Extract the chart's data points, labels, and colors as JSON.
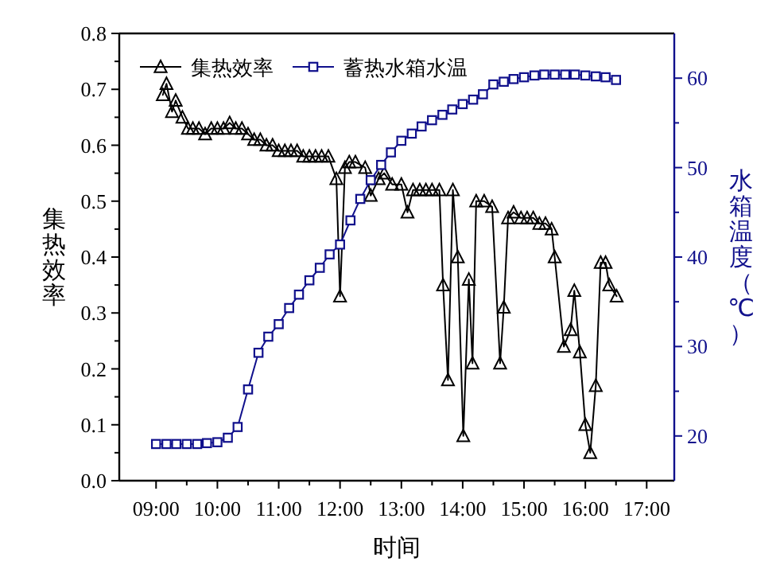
{
  "chart_data": {
    "type": "line",
    "xlabel": "时间",
    "ylabel": "集热效率",
    "y2label": "水箱温度（℃）",
    "xlim": [
      8.4,
      17.45
    ],
    "xticks": [
      {
        "value": 9,
        "label": "09:00"
      },
      {
        "value": 10,
        "label": "10:00"
      },
      {
        "value": 11,
        "label": "11:00"
      },
      {
        "value": 12,
        "label": "12:00"
      },
      {
        "value": 13,
        "label": "13:00"
      },
      {
        "value": 14,
        "label": "14:00"
      },
      {
        "value": 15,
        "label": "15:00"
      },
      {
        "value": 16,
        "label": "16:00"
      },
      {
        "value": 17,
        "label": "17:00"
      }
    ],
    "ylim": [
      0,
      0.8
    ],
    "yticks": [
      {
        "value": 0,
        "label": "0.0"
      },
      0.1,
      0.2,
      0.3,
      0.4,
      0.5,
      0.6,
      0.7,
      0.8
    ],
    "y2lim": [
      15,
      65
    ],
    "y2ticks": [
      20,
      30,
      40,
      50,
      60
    ],
    "legend": "top",
    "grid": false,
    "series": [
      {
        "name": "集热效率",
        "color": "#000000",
        "marker": "triangle",
        "x": [
          9.11,
          9.17,
          9.26,
          9.32,
          9.43,
          9.52,
          9.6,
          9.7,
          9.8,
          9.9,
          10.0,
          10.1,
          10.2,
          10.3,
          10.4,
          10.5,
          10.6,
          10.7,
          10.8,
          10.9,
          11.0,
          11.1,
          11.2,
          11.3,
          11.4,
          11.5,
          11.6,
          11.7,
          11.81,
          11.94,
          12.0,
          12.08,
          12.15,
          12.25,
          12.41,
          12.5,
          12.63,
          12.72,
          12.85,
          13.0,
          13.1,
          13.19,
          13.3,
          13.4,
          13.5,
          13.62,
          13.68,
          13.76,
          13.84,
          13.92,
          14.01,
          14.1,
          14.16,
          14.22,
          14.35,
          14.48,
          14.61,
          14.67,
          14.74,
          14.83,
          14.95,
          15.05,
          15.15,
          15.25,
          15.35,
          15.45,
          15.5,
          15.65,
          15.76,
          15.82,
          15.91,
          16.0,
          16.08,
          16.17,
          16.25,
          16.33,
          16.39,
          16.51
        ],
        "values": [
          0.69,
          0.71,
          0.66,
          0.68,
          0.65,
          0.63,
          0.63,
          0.63,
          0.62,
          0.63,
          0.63,
          0.63,
          0.64,
          0.63,
          0.63,
          0.62,
          0.61,
          0.61,
          0.6,
          0.6,
          0.59,
          0.59,
          0.59,
          0.59,
          0.58,
          0.58,
          0.58,
          0.58,
          0.58,
          0.54,
          0.33,
          0.56,
          0.57,
          0.57,
          0.56,
          0.51,
          0.54,
          0.55,
          0.53,
          0.53,
          0.48,
          0.52,
          0.52,
          0.52,
          0.52,
          0.52,
          0.35,
          0.18,
          0.52,
          0.4,
          0.08,
          0.36,
          0.21,
          0.5,
          0.5,
          0.49,
          0.21,
          0.31,
          0.47,
          0.48,
          0.47,
          0.47,
          0.47,
          0.46,
          0.46,
          0.45,
          0.4,
          0.24,
          0.27,
          0.34,
          0.23,
          0.1,
          0.05,
          0.17,
          0.39,
          0.39,
          0.35,
          0.33
        ]
      },
      {
        "name": "蓄热水箱水温",
        "color": "#10108c",
        "marker": "square",
        "axis": "y2",
        "x": [
          9.0,
          9.17,
          9.33,
          9.5,
          9.67,
          9.83,
          10.0,
          10.17,
          10.33,
          10.5,
          10.67,
          10.83,
          11.0,
          11.17,
          11.33,
          11.5,
          11.67,
          11.83,
          12.0,
          12.17,
          12.33,
          12.5,
          12.67,
          12.83,
          13.0,
          13.17,
          13.33,
          13.5,
          13.67,
          13.83,
          14.0,
          14.17,
          14.33,
          14.5,
          14.67,
          14.83,
          15.0,
          15.17,
          15.33,
          15.5,
          15.67,
          15.83,
          16.0,
          16.17,
          16.33,
          16.5
        ],
        "values": [
          19.1,
          19.1,
          19.1,
          19.1,
          19.1,
          19.2,
          19.3,
          19.8,
          21.0,
          25.2,
          29.3,
          31.1,
          32.5,
          34.3,
          35.8,
          37.4,
          38.8,
          40.3,
          41.4,
          44.1,
          46.5,
          48.6,
          50.3,
          51.7,
          53.0,
          53.8,
          54.6,
          55.3,
          55.9,
          56.5,
          57.1,
          57.6,
          58.2,
          59.3,
          59.6,
          59.9,
          60.1,
          60.3,
          60.4,
          60.4,
          60.4,
          60.4,
          60.3,
          60.2,
          60.1,
          59.8
        ]
      }
    ]
  }
}
